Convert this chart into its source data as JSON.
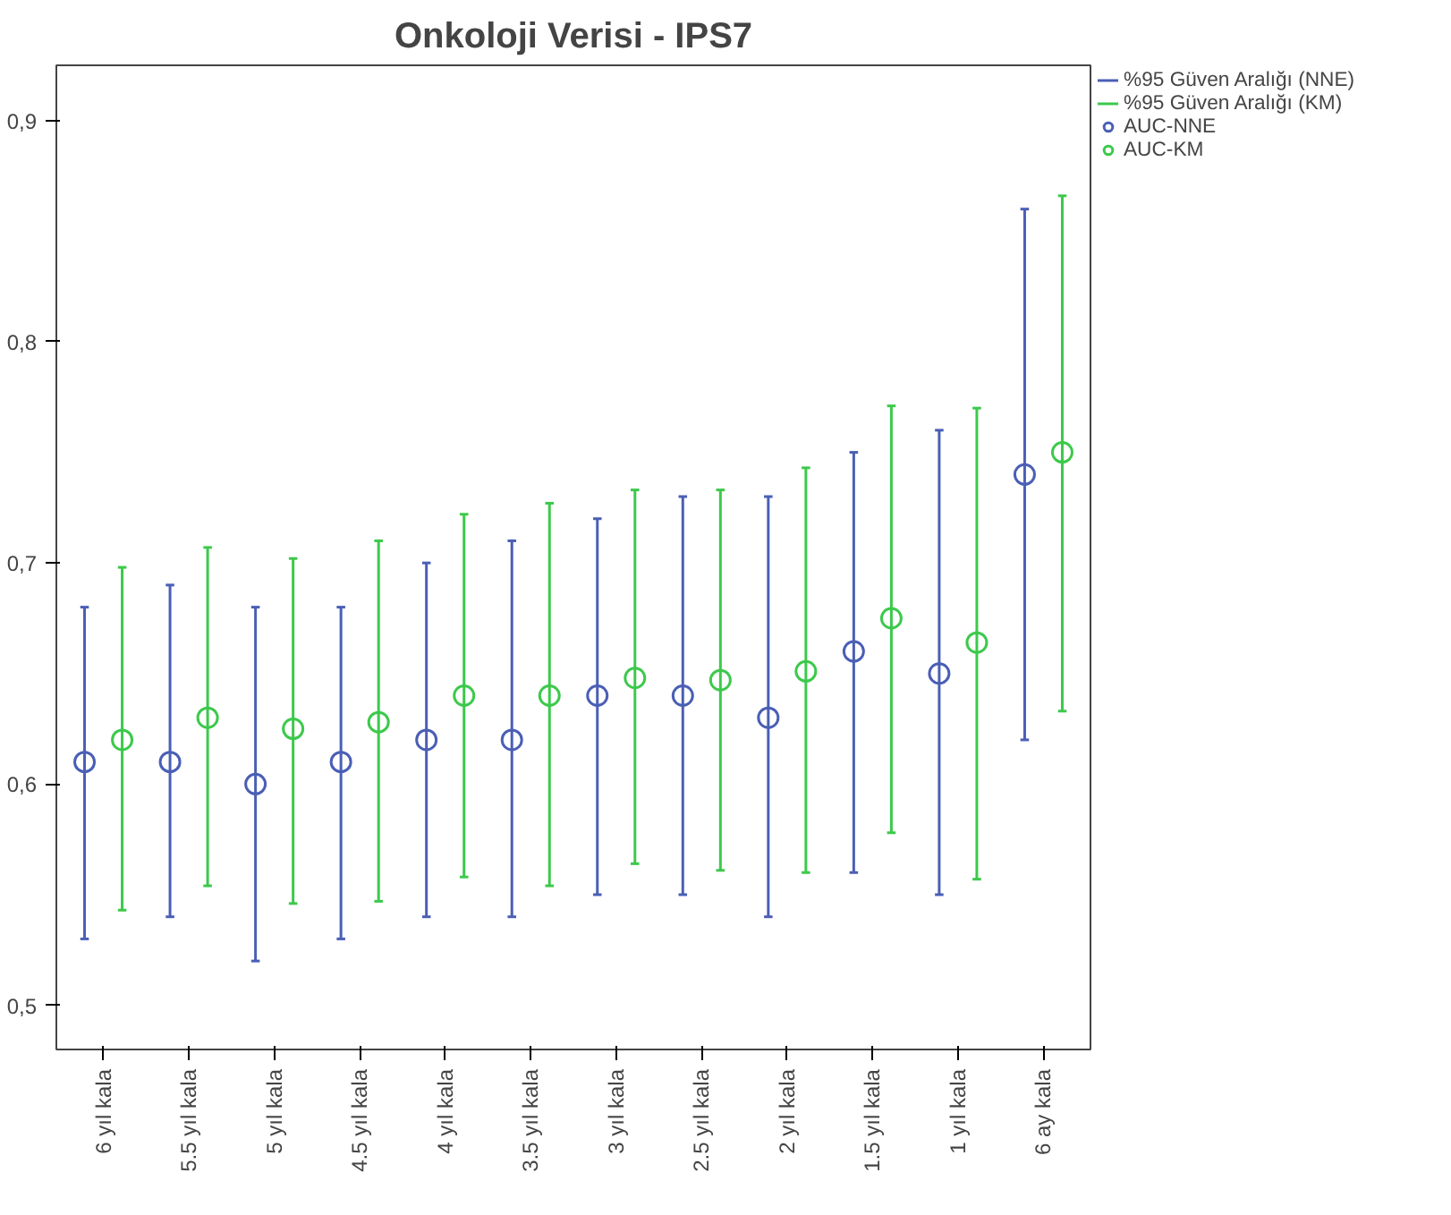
{
  "chart_data": {
    "type": "scatter",
    "title": "Onkoloji Verisi - IPS7",
    "categories": [
      "6 yıl kala",
      "5.5 yıl kala",
      "5 yıl kala",
      "4.5 yıl kala",
      "4 yıl kala",
      "3.5 yıl kala",
      "3 yıl kala",
      "2.5 yıl kala",
      "2 yıl kala",
      "1.5 yıl kala",
      "1 yıl kala",
      "6 ay kala"
    ],
    "series": [
      {
        "name": "AUC-NNE",
        "color": "#4a5fb5",
        "values": [
          0.61,
          0.61,
          0.6,
          0.61,
          0.62,
          0.62,
          0.64,
          0.64,
          0.63,
          0.66,
          0.65,
          0.74
        ],
        "errors": [
          [
            0.53,
            0.68
          ],
          [
            0.54,
            0.69
          ],
          [
            0.52,
            0.68
          ],
          [
            0.53,
            0.68
          ],
          [
            0.54,
            0.7
          ],
          [
            0.54,
            0.71
          ],
          [
            0.55,
            0.72
          ],
          [
            0.55,
            0.73
          ],
          [
            0.54,
            0.73
          ],
          [
            0.56,
            0.75
          ],
          [
            0.55,
            0.76
          ],
          [
            0.62,
            0.86
          ]
        ]
      },
      {
        "name": "AUC-KM",
        "color": "#3cc94b",
        "values": [
          0.62,
          0.63,
          0.625,
          0.628,
          0.64,
          0.64,
          0.648,
          0.647,
          0.651,
          0.675,
          0.664,
          0.75
        ],
        "errors": [
          [
            0.543,
            0.698
          ],
          [
            0.554,
            0.707
          ],
          [
            0.546,
            0.702
          ],
          [
            0.547,
            0.71
          ],
          [
            0.558,
            0.722
          ],
          [
            0.554,
            0.727
          ],
          [
            0.564,
            0.733
          ],
          [
            0.561,
            0.733
          ],
          [
            0.56,
            0.743
          ],
          [
            0.578,
            0.771
          ],
          [
            0.557,
            0.77
          ],
          [
            0.633,
            0.866
          ]
        ]
      }
    ],
    "ylim": [
      0.48,
      0.925
    ],
    "yticks": [
      {
        "value": 0.5,
        "label": "0,5"
      },
      {
        "value": 0.6,
        "label": "0,6"
      },
      {
        "value": 0.7,
        "label": "0,7"
      },
      {
        "value": 0.8,
        "label": "0,8"
      },
      {
        "value": 0.9,
        "label": "0,9"
      }
    ],
    "annotations": [
      "%95 Güven Aralığı (NNE)",
      "%95 Güven Aralığı (KM)"
    ],
    "marker": "circle",
    "grid": false,
    "legend": "top right"
  }
}
